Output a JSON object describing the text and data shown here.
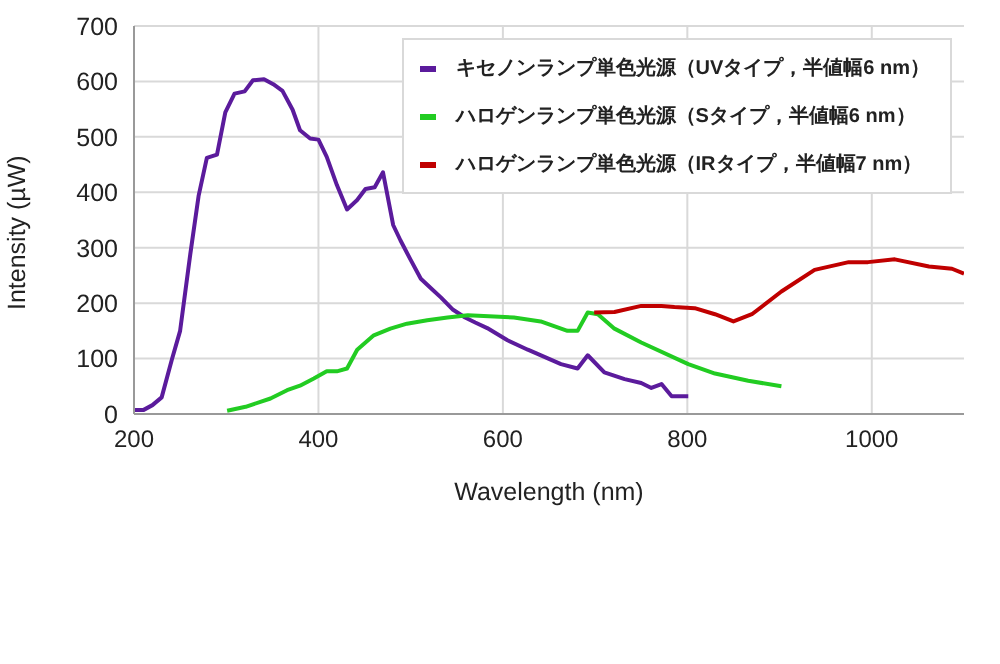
{
  "chart_data": {
    "type": "line",
    "xlabel": "Wavelength (nm)",
    "ylabel": "Intensity (µW)",
    "xlim": [
      200,
      1100
    ],
    "xticks": [
      200,
      400,
      600,
      800,
      1000
    ],
    "ylim": [
      0,
      700
    ],
    "yticks": [
      0,
      100,
      200,
      300,
      400,
      500,
      600,
      700
    ],
    "grid": true,
    "legend": "top right",
    "marker": "none",
    "line_style": "solid",
    "series": [
      {
        "name": "キセノンランプ単色光源（UVタイプ，半値幅6 nm）",
        "color": "#5b1b9c",
        "x": [
          201,
          210,
          220,
          230,
          241,
          250,
          261,
          270,
          279,
          290,
          299,
          309,
          320,
          329,
          341,
          351,
          361,
          372,
          380,
          391,
          400,
          409,
          420,
          431,
          442,
          451,
          461,
          470,
          481,
          489,
          500,
          511,
          522,
          533,
          546,
          559,
          570,
          583,
          605,
          627,
          663,
          681,
          692,
          710,
          732,
          750,
          761,
          772,
          783,
          801
        ],
        "values": [
          7,
          7,
          16,
          30,
          98,
          150,
          288,
          393,
          462,
          468,
          544,
          578,
          582,
          602,
          604,
          595,
          583,
          549,
          512,
          497,
          495,
          464,
          413,
          369,
          386,
          406,
          409,
          436,
          341,
          313,
          278,
          244,
          227,
          210,
          188,
          174,
          165,
          155,
          133,
          116,
          90,
          82,
          106,
          75,
          63,
          56,
          47,
          54,
          32,
          32
        ]
      },
      {
        "name": "ハロゲンランプ単色光源（Sタイプ，半値幅6 nm）",
        "color": "#22cc22",
        "x": [
          301,
          321,
          348,
          366,
          380,
          395,
          409,
          420,
          431,
          442,
          460,
          478,
          496,
          518,
          540,
          562,
          612,
          641,
          670,
          681,
          692,
          703,
          721,
          750,
          801,
          830,
          866,
          902
        ],
        "values": [
          6,
          13,
          28,
          43,
          51,
          64,
          77,
          77,
          82,
          116,
          142,
          154,
          163,
          169,
          174,
          178,
          174,
          167,
          150,
          150,
          183,
          180,
          154,
          129,
          90,
          73,
          60,
          50
        ]
      },
      {
        "name": "ハロゲンランプ単色光源（IRタイプ，半値幅7 nm）",
        "color": "#c00000",
        "x": [
          699,
          721,
          750,
          772,
          786,
          808,
          830,
          850,
          870,
          902,
          938,
          975,
          996,
          1025,
          1062,
          1087,
          1100
        ],
        "values": [
          183,
          184,
          195,
          195,
          193,
          191,
          180,
          167,
          180,
          221,
          260,
          274,
          274,
          279,
          266,
          262,
          253
        ]
      }
    ]
  }
}
